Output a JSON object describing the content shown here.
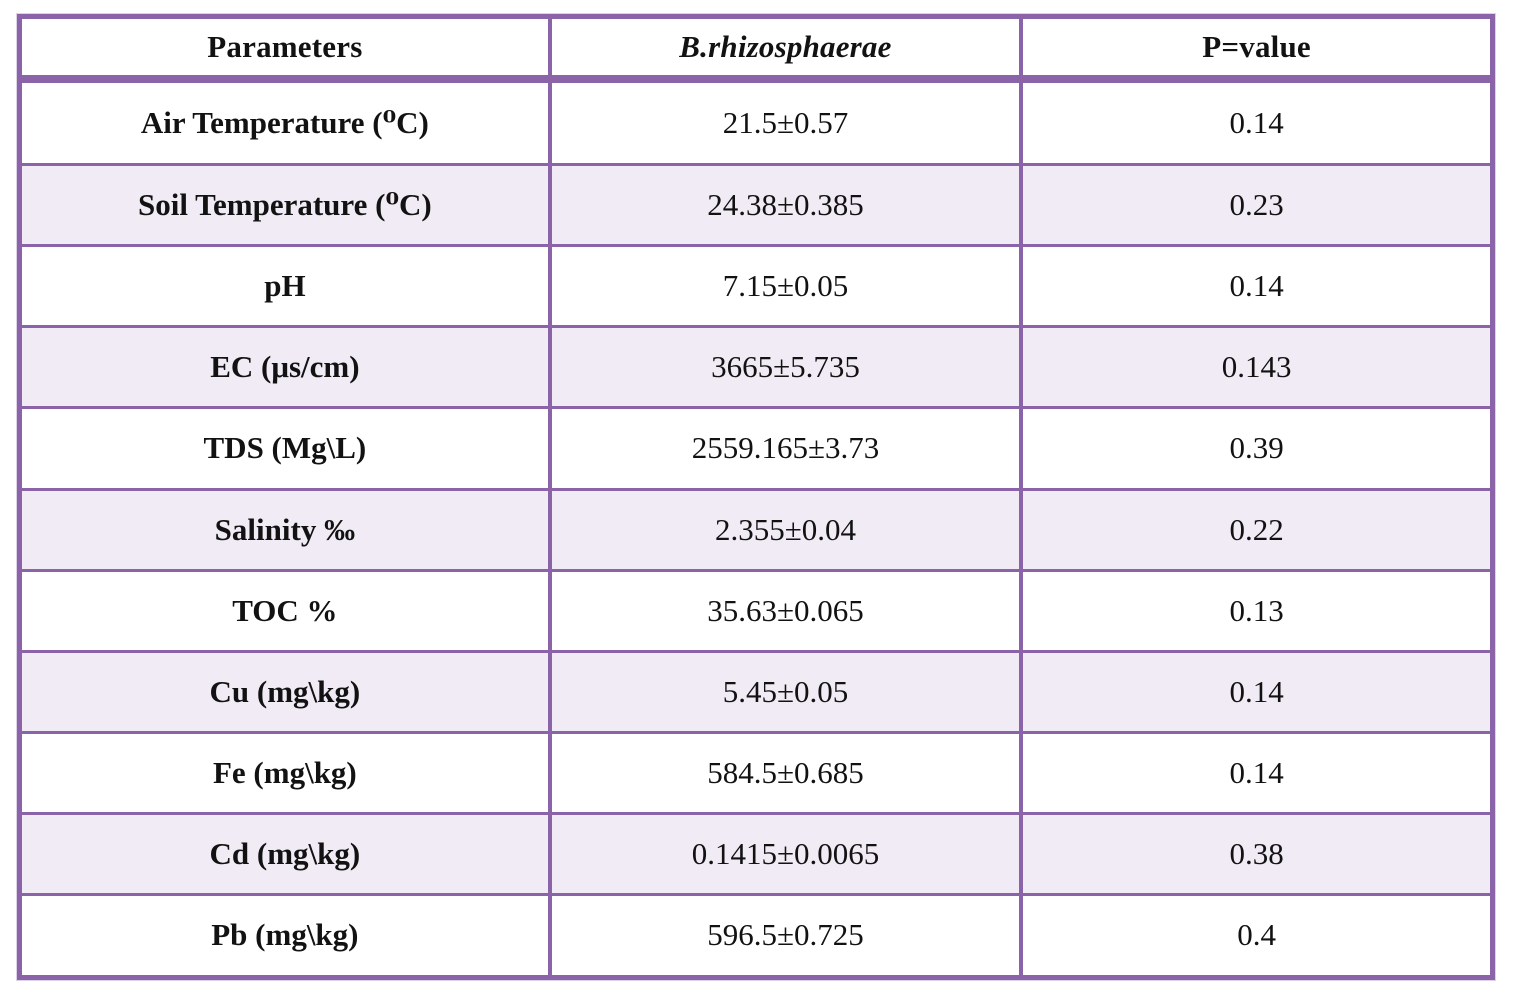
{
  "table": {
    "colors": {
      "border": "#8a63a9",
      "alt_row_bg": "#f0ebf4",
      "row_bg": "#ffffff",
      "text": "#121212"
    },
    "columns": [
      {
        "label": "Parameters"
      },
      {
        "label": "B.rhizosphaerae"
      },
      {
        "label": "P=value"
      }
    ],
    "rows": [
      {
        "parameter": "Air Temperature (⁰C)",
        "value": "21.5±0.57",
        "p": "0.14"
      },
      {
        "parameter": "Soil Temperature (⁰C)",
        "value": "24.38±0.385",
        "p": "0.23"
      },
      {
        "parameter": "pH",
        "value": "7.15±0.05",
        "p": "0.14"
      },
      {
        "parameter": "EC (μs/cm)",
        "value": "3665±5.735",
        "p": "0.143"
      },
      {
        "parameter": "TDS (Mg\\L)",
        "value": "2559.165±3.73",
        "p": "0.39"
      },
      {
        "parameter": "Salinity ‰",
        "value": "2.355±0.04",
        "p": "0.22"
      },
      {
        "parameter": "TOC %",
        "value": "35.63±0.065",
        "p": "0.13"
      },
      {
        "parameter": "Cu (mg\\kg)",
        "value": "5.45±0.05",
        "p": "0.14"
      },
      {
        "parameter": "Fe (mg\\kg)",
        "value": "584.5±0.685",
        "p": "0.14"
      },
      {
        "parameter": "Cd (mg\\kg)",
        "value": "0.1415±0.0065",
        "p": "0.38"
      },
      {
        "parameter": "Pb (mg\\kg)",
        "value": "596.5±0.725",
        "p": "0.4"
      }
    ]
  }
}
